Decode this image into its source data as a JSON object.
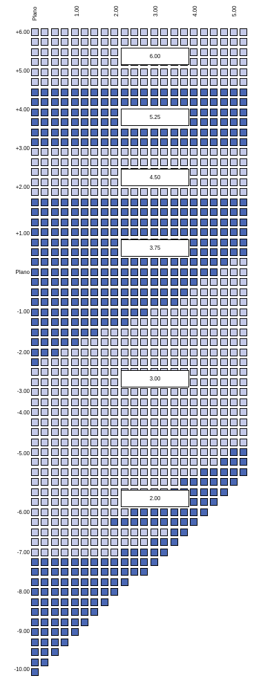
{
  "columns": {
    "labels": [
      "Plano",
      "1.00",
      "2.00",
      "3.00",
      "4.00",
      "5.00"
    ]
  },
  "rows": {
    "labels": [
      "+6.00",
      "+5.00",
      "+4.00",
      "+3.00",
      "+2.00",
      "+1.00",
      "Plano",
      "-1.00",
      "-2.00",
      "-3.00",
      "-4.00",
      "-5.00",
      "-6.00",
      "-7.00",
      "-8.00",
      "-9.00",
      "-10.00"
    ]
  },
  "base_curves": {
    "labels": [
      "6.00",
      "5.25",
      "4.50",
      "3.75",
      "3.00",
      "2.00"
    ]
  },
  "colors": {
    "light_cell": "#c4c9e8",
    "dark_cell": "#4a67b3",
    "cell_border": "#000000",
    "box_fill": "#ffffff"
  },
  "grid": {
    "columns": 22,
    "rows": 65
  }
}
